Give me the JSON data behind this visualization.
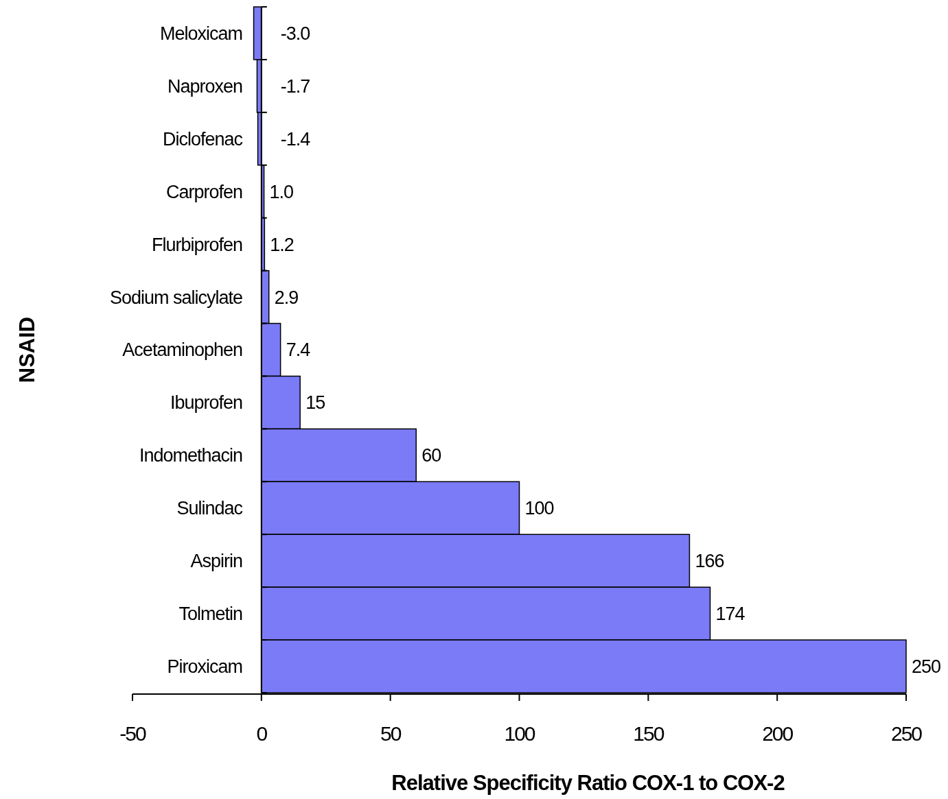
{
  "chart_data": {
    "type": "bar",
    "orientation": "horizontal",
    "xlabel": "Relative Specificity Ratio COX-1 to COX-2",
    "ylabel": "NSAID",
    "categories": [
      "Meloxicam",
      "Naproxen",
      "Diclofenac",
      "Carprofen",
      "Flurbiprofen",
      "Sodium salicylate",
      "Acetaminophen",
      "Ibuprofen",
      "Indomethacin",
      "Sulindac",
      "Aspirin",
      "Tolmetin",
      "Piroxicam"
    ],
    "values": [
      -3.0,
      -1.7,
      -1.4,
      1.0,
      1.2,
      2.9,
      7.4,
      15,
      60,
      100,
      166,
      174,
      250
    ],
    "value_labels": [
      "-3.0",
      "-1.7",
      "-1.4",
      "1.0",
      "1.2",
      "2.9",
      "7.4",
      "15",
      "60",
      "100",
      "166",
      "174",
      "250"
    ],
    "color": "#7b7bf7",
    "xlim": [
      -50,
      250
    ],
    "xticks": [
      -50,
      0,
      50,
      100,
      150,
      200,
      250
    ],
    "grid": false
  }
}
